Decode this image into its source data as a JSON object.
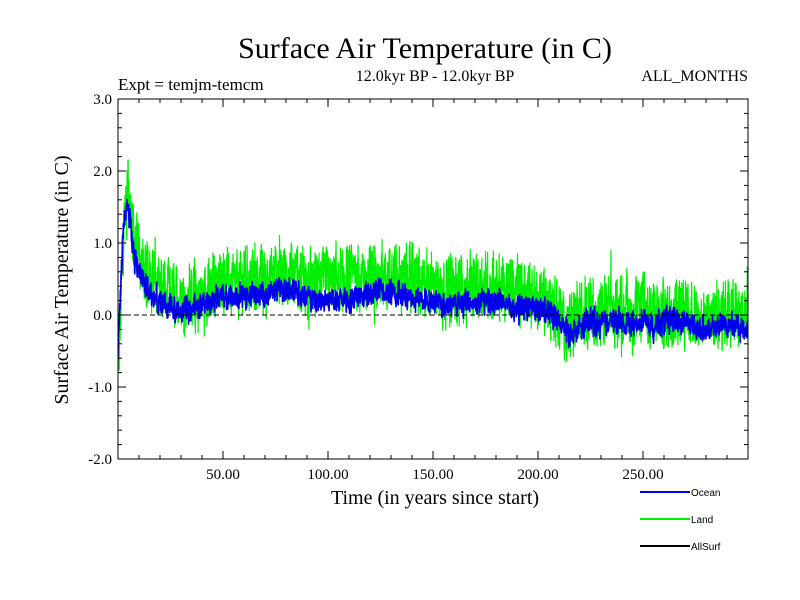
{
  "chart_data": {
    "type": "line",
    "title": "Surface Air Temperature (in C)",
    "subtitle_left": "Expt = temjm-temcm",
    "subtitle_center": "12.0kyr BP - 12.0kyr BP",
    "subtitle_right": "ALL_MONTHS",
    "xlabel": "Time (in years since start)",
    "ylabel": "Surface Air Temperature (in C)",
    "xlim": [
      0,
      300
    ],
    "ylim": [
      -2.0,
      3.0
    ],
    "x_ticks": [
      50,
      100,
      150,
      200,
      250
    ],
    "x_tick_labels": [
      "50.00",
      "100.00",
      "150.00",
      "200.00",
      "250.00"
    ],
    "y_ticks": [
      -2.0,
      -1.0,
      0.0,
      1.0,
      2.0,
      3.0
    ],
    "y_tick_labels": [
      "-2.0",
      "-1.0",
      "0.0",
      "1.0",
      "2.0",
      "3.0"
    ],
    "reference_line": 0.0,
    "series": [
      {
        "name": "Land",
        "color": "#00ee00",
        "x": [
          0,
          1,
          2,
          3,
          4,
          5,
          6,
          7,
          8,
          10,
          12,
          15,
          20,
          25,
          30,
          35,
          40,
          45,
          50,
          55,
          60,
          65,
          70,
          75,
          80,
          85,
          90,
          95,
          100,
          105,
          110,
          115,
          120,
          125,
          130,
          135,
          140,
          145,
          150,
          155,
          160,
          165,
          170,
          175,
          180,
          185,
          190,
          195,
          200,
          205,
          210,
          215,
          220,
          225,
          230,
          235,
          240,
          245,
          250,
          255,
          260,
          265,
          270,
          275,
          280,
          285,
          290,
          295,
          300
        ],
        "values": [
          -0.8,
          -0.2,
          0.8,
          1.3,
          1.6,
          1.7,
          1.5,
          1.2,
          1.0,
          0.8,
          0.6,
          0.55,
          0.35,
          0.3,
          0.2,
          0.25,
          0.3,
          0.4,
          0.55,
          0.4,
          0.45,
          0.5,
          0.45,
          0.55,
          0.6,
          0.5,
          0.45,
          0.4,
          0.45,
          0.5,
          0.45,
          0.5,
          0.55,
          0.6,
          0.5,
          0.45,
          0.5,
          0.4,
          0.45,
          0.4,
          0.35,
          0.4,
          0.35,
          0.45,
          0.4,
          0.35,
          0.3,
          0.3,
          0.25,
          0.2,
          0.0,
          -0.2,
          0.0,
          0.05,
          0.0,
          0.1,
          0.05,
          0.0,
          0.1,
          -0.05,
          0.0,
          0.05,
          0.0,
          0.0,
          -0.05,
          0.0,
          0.05,
          0.0,
          0.0
        ],
        "noise_amplitude": 0.55
      },
      {
        "name": "Ocean",
        "color": "#0000ee",
        "x": [
          0,
          1,
          2,
          3,
          4,
          5,
          6,
          7,
          8,
          10,
          12,
          15,
          20,
          25,
          30,
          35,
          40,
          45,
          50,
          55,
          60,
          65,
          70,
          75,
          80,
          85,
          90,
          95,
          100,
          105,
          110,
          115,
          120,
          125,
          130,
          135,
          140,
          145,
          150,
          155,
          160,
          165,
          170,
          175,
          180,
          185,
          190,
          195,
          200,
          205,
          210,
          215,
          220,
          225,
          230,
          235,
          240,
          245,
          250,
          255,
          260,
          265,
          270,
          275,
          280,
          285,
          290,
          295,
          300
        ],
        "values": [
          -0.5,
          0.1,
          0.9,
          1.35,
          1.5,
          1.45,
          1.2,
          0.95,
          0.75,
          0.6,
          0.45,
          0.35,
          0.15,
          0.1,
          0.05,
          0.1,
          0.15,
          0.2,
          0.3,
          0.2,
          0.25,
          0.3,
          0.3,
          0.35,
          0.35,
          0.3,
          0.25,
          0.2,
          0.2,
          0.25,
          0.2,
          0.25,
          0.3,
          0.35,
          0.3,
          0.25,
          0.25,
          0.2,
          0.2,
          0.15,
          0.15,
          0.2,
          0.15,
          0.2,
          0.2,
          0.15,
          0.1,
          0.1,
          0.1,
          0.05,
          -0.1,
          -0.25,
          -0.15,
          -0.1,
          -0.15,
          -0.05,
          -0.1,
          -0.15,
          -0.05,
          -0.15,
          -0.1,
          -0.05,
          -0.1,
          -0.15,
          -0.2,
          -0.15,
          -0.1,
          -0.15,
          -0.2
        ],
        "noise_amplitude": 0.2
      }
    ],
    "legend": [
      {
        "name": "Ocean",
        "color": "#0000ee"
      },
      {
        "name": "Land",
        "color": "#00ee00"
      },
      {
        "name": "AllSurf",
        "color": "#000000"
      }
    ]
  }
}
